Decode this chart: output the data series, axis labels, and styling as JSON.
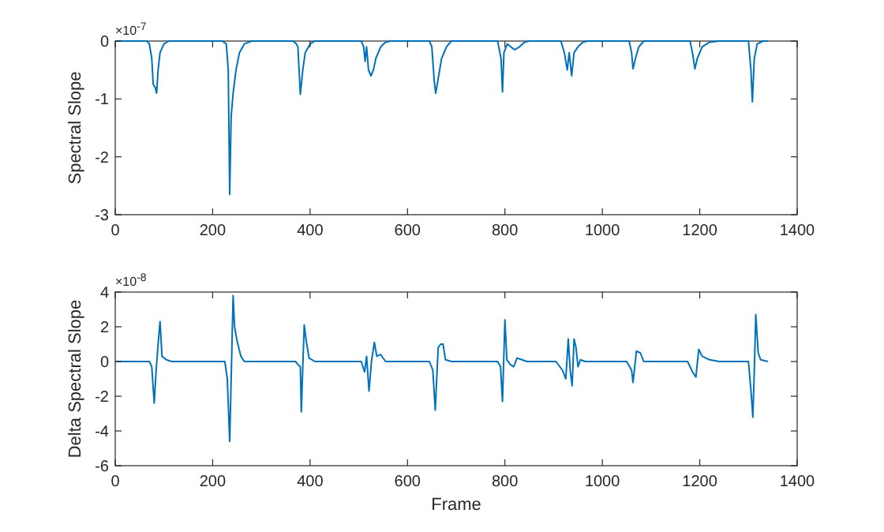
{
  "chart_data": [
    {
      "type": "line",
      "ylabel": "Spectral Slope",
      "annotations": [
        "×10$^{-7}$"
      ],
      "xlim": [
        0,
        1400
      ],
      "xticks": [
        0,
        200,
        400,
        600,
        800,
        1000,
        1200,
        1400
      ],
      "ylim": [
        -3,
        0
      ],
      "yticks": [
        -3,
        -2,
        -1,
        0
      ],
      "x": [
        0,
        65,
        70,
        75,
        78,
        82,
        85,
        88,
        92,
        100,
        110,
        220,
        228,
        232,
        235,
        238,
        242,
        248,
        255,
        265,
        280,
        365,
        372,
        375,
        380,
        385,
        390,
        400,
        410,
        505,
        510,
        513,
        516,
        520,
        525,
        530,
        535,
        545,
        555,
        565,
        645,
        650,
        655,
        658,
        662,
        670,
        680,
        690,
        785,
        792,
        795,
        798,
        805,
        812,
        820,
        830,
        840,
        850,
        915,
        922,
        928,
        932,
        937,
        942,
        950,
        960,
        970,
        1055,
        1060,
        1063,
        1068,
        1075,
        1085,
        1180,
        1185,
        1190,
        1195,
        1205,
        1220,
        1240,
        1300,
        1305,
        1308,
        1312,
        1318,
        1330,
        1340
      ],
      "series": [
        {
          "color": "#0072bd",
          "values": [
            0,
            0,
            -0.05,
            -0.3,
            -0.75,
            -0.8,
            -0.9,
            -0.5,
            -0.2,
            -0.05,
            0,
            0,
            -0.05,
            -0.5,
            -2.65,
            -1.3,
            -0.9,
            -0.5,
            -0.2,
            -0.05,
            0,
            0,
            -0.05,
            -0.1,
            -0.92,
            -0.5,
            -0.2,
            -0.05,
            0,
            0,
            -0.1,
            -0.35,
            -0.1,
            -0.5,
            -0.6,
            -0.5,
            -0.3,
            -0.1,
            -0.02,
            0,
            0,
            -0.1,
            -0.7,
            -0.9,
            -0.7,
            -0.3,
            -0.1,
            0,
            0,
            -0.3,
            -0.88,
            -0.2,
            -0.05,
            -0.1,
            -0.15,
            -0.1,
            -0.02,
            0,
            0,
            -0.2,
            -0.5,
            -0.2,
            -0.6,
            -0.2,
            -0.1,
            -0.02,
            0,
            0,
            -0.2,
            -0.48,
            -0.3,
            -0.1,
            0,
            0,
            -0.2,
            -0.48,
            -0.3,
            -0.1,
            -0.02,
            0,
            0,
            -0.5,
            -1.05,
            -0.3,
            -0.05,
            0,
            0
          ]
        }
      ]
    },
    {
      "type": "line",
      "xlabel": "Frame",
      "ylabel": "Delta Spectral Slope",
      "annotations": [
        "×10$^{-8}$"
      ],
      "xlim": [
        0,
        1400
      ],
      "xticks": [
        0,
        200,
        400,
        600,
        800,
        1000,
        1200,
        1400
      ],
      "ylim": [
        -6,
        4
      ],
      "yticks": [
        -6,
        -4,
        -2,
        0,
        2,
        4
      ],
      "x": [
        0,
        70,
        75,
        80,
        84,
        88,
        92,
        96,
        105,
        115,
        225,
        230,
        235,
        238,
        242,
        245,
        250,
        258,
        265,
        370,
        376,
        380,
        382,
        386,
        388,
        392,
        398,
        410,
        505,
        512,
        516,
        521,
        526,
        532,
        537,
        545,
        555,
        645,
        652,
        657,
        663,
        668,
        673,
        678,
        690,
        785,
        791,
        795,
        800,
        804,
        812,
        818,
        825,
        835,
        845,
        905,
        918,
        925,
        930,
        934,
        938,
        942,
        946,
        950,
        955,
        965,
        1050,
        1060,
        1063,
        1070,
        1078,
        1085,
        1175,
        1185,
        1192,
        1198,
        1205,
        1220,
        1240,
        1300,
        1306,
        1309,
        1312,
        1315,
        1320,
        1325,
        1340
      ],
      "series": [
        {
          "color": "#0072bd",
          "values": [
            0,
            0,
            -0.3,
            -2.4,
            -0.5,
            1,
            2.3,
            0.3,
            0.1,
            0,
            0,
            -1,
            -4.6,
            -1,
            3.8,
            2,
            1.2,
            0.3,
            0,
            0,
            -0.2,
            -0.3,
            -2.9,
            0.5,
            2.1,
            1.2,
            0.2,
            0,
            0,
            -0.6,
            0.3,
            -1.7,
            0,
            1.1,
            0.3,
            0.4,
            0,
            0,
            -0.5,
            -2.8,
            0.8,
            1,
            1,
            0.1,
            0,
            0,
            -0.3,
            -2.3,
            2.4,
            0.1,
            -0.2,
            -0.3,
            0.2,
            0.1,
            0,
            0,
            -0.5,
            -1,
            1.3,
            -0.5,
            -1.4,
            1.3,
            0.8,
            -0.3,
            0.1,
            0,
            0,
            -0.5,
            -1.2,
            0.6,
            0.5,
            0,
            0,
            -0.6,
            -0.9,
            0.7,
            0.3,
            0.1,
            0,
            0,
            -2,
            -3.2,
            -0.5,
            2.7,
            0.5,
            0.1,
            0
          ]
        }
      ]
    }
  ]
}
